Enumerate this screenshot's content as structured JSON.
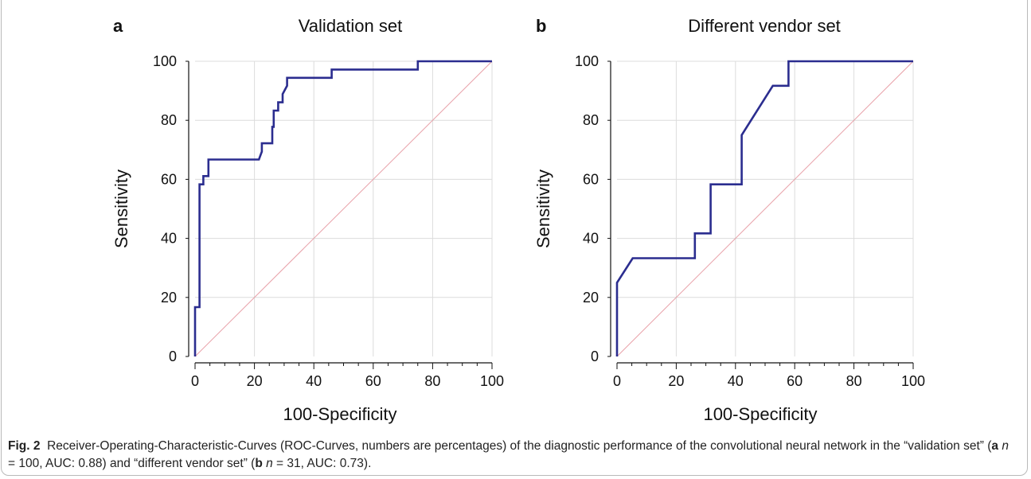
{
  "caption": {
    "fig_label": "Fig. 2",
    "text_1": "Receiver-Operating-Characteristic-Curves (ROC-Curves, numbers are percentages) of the diagnostic performance of the convolutional neural network in the “validation set” (",
    "bold_a": "a",
    "n_a": "n",
    "text_2": " = 100, AUC: 0.88) and “different vendor set” (",
    "bold_b": "b",
    "n_b": "n",
    "text_3": " = 31, AUC: 0.73)."
  },
  "colors": {
    "roc_line": "#2b2d8f",
    "diagonal": "#e8a0a8",
    "grid": "#dcdcdc",
    "axis": "#111111"
  },
  "chart_data": [
    {
      "type": "line",
      "panel_letter": "a",
      "title": "Validation set",
      "xlabel": "100-Specificity",
      "ylabel": "Sensitivity",
      "xlim": [
        0,
        100
      ],
      "ylim": [
        0,
        100
      ],
      "xticks": [
        0,
        20,
        40,
        60,
        80,
        100
      ],
      "yticks": [
        0,
        20,
        40,
        60,
        80,
        100
      ],
      "grid": true,
      "series": [
        {
          "x": [
            0,
            0,
            1.5,
            1.5,
            2.8,
            2.8,
            4.5,
            4.5,
            21.5,
            22.5,
            22.5,
            26,
            26,
            26.5,
            26.5,
            28,
            28,
            29.5,
            29.5,
            31,
            31,
            46,
            46,
            75,
            75,
            100
          ],
          "y": [
            0,
            16.7,
            16.7,
            58.3,
            58.3,
            61.1,
            61.1,
            66.7,
            66.7,
            69.4,
            72.2,
            72.2,
            77.8,
            77.8,
            83.3,
            83.3,
            86.1,
            86.1,
            88.9,
            91.7,
            94.4,
            94.4,
            97.2,
            97.2,
            100,
            100
          ]
        },
        {
          "x": [
            0,
            100
          ],
          "y": [
            0,
            100
          ]
        }
      ]
    },
    {
      "type": "line",
      "panel_letter": "b",
      "title": "Different vendor set",
      "xlabel": "100-Specificity",
      "ylabel": "Sensitivity",
      "xlim": [
        0,
        100
      ],
      "ylim": [
        0,
        100
      ],
      "xticks": [
        0,
        20,
        40,
        60,
        80,
        100
      ],
      "yticks": [
        0,
        20,
        40,
        60,
        80,
        100
      ],
      "grid": true,
      "series": [
        {
          "x": [
            0,
            0,
            5.3,
            26.3,
            26.3,
            31.6,
            31.6,
            42.1,
            42.1,
            52.6,
            57.9,
            57.9,
            100
          ],
          "y": [
            0,
            25,
            33.3,
            33.3,
            41.7,
            41.7,
            58.3,
            58.3,
            75,
            91.7,
            91.7,
            100,
            100
          ]
        },
        {
          "x": [
            0,
            100
          ],
          "y": [
            0,
            100
          ]
        }
      ]
    }
  ]
}
